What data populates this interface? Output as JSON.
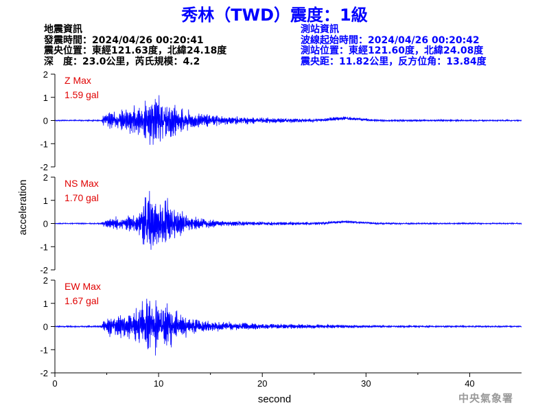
{
  "title": "秀林（TWD）震度：1級",
  "event_info": {
    "heading": "地震資訊",
    "origin_time": "發震時間：2024/04/26 00:20:41",
    "epicenter": "震央位置：東經121.63度，北緯24.18度",
    "depth_magnitude": "深　度：23.0公里，芮氏規模：4.2"
  },
  "station_info": {
    "heading": "測站資訊",
    "waveform_start": "波線起始時間：2024/04/26 00:20:42",
    "station_location": "測站位置：東經121.60度，北緯24.08度",
    "distance_azimuth": "震央距：11.82公里，反方位角：13.84度"
  },
  "agency": "中央氣象署",
  "colors": {
    "title": "#0000ff",
    "trace": "#0000ff",
    "max_label": "#e00000",
    "axis": "#000000",
    "agency": "#9a9a9a"
  },
  "chart_data": {
    "type": "line",
    "xlabel": "second",
    "ylabel": "acceleration",
    "xlim": [
      0,
      45
    ],
    "xticks": [
      0,
      10,
      20,
      30,
      40
    ],
    "ylim": [
      -2,
      2
    ],
    "yticks": [
      -2,
      -1,
      0,
      1,
      2
    ],
    "panels": [
      {
        "component": "Z",
        "label": "Z Max",
        "max_value": "1.59 gal",
        "peak": 1.59,
        "envelope": [
          [
            0,
            0.03
          ],
          [
            4.5,
            0.04
          ],
          [
            4.7,
            0.3
          ],
          [
            5.2,
            0.5
          ],
          [
            6.5,
            0.55
          ],
          [
            7.5,
            0.75
          ],
          [
            8.5,
            1.0
          ],
          [
            9.5,
            1.55
          ],
          [
            10.5,
            1.1
          ],
          [
            11.5,
            0.85
          ],
          [
            12.5,
            0.6
          ],
          [
            14,
            0.4
          ],
          [
            16,
            0.25
          ],
          [
            20,
            0.15
          ],
          [
            25,
            0.1
          ],
          [
            28,
            0.09
          ],
          [
            32,
            0.06
          ],
          [
            45,
            0.04
          ]
        ],
        "drift": [
          [
            0,
            0
          ],
          [
            25,
            0
          ],
          [
            28,
            0.1
          ],
          [
            31,
            0
          ],
          [
            45,
            0
          ]
        ]
      },
      {
        "component": "NS",
        "label": "NS Max",
        "max_value": "1.70 gal",
        "peak": 1.7,
        "envelope": [
          [
            0,
            0.03
          ],
          [
            4.5,
            0.04
          ],
          [
            4.7,
            0.15
          ],
          [
            5.5,
            0.3
          ],
          [
            7,
            0.4
          ],
          [
            8,
            0.5
          ],
          [
            8.6,
            1.3
          ],
          [
            9.2,
            1.7
          ],
          [
            10,
            1.2
          ],
          [
            10.6,
            1.45
          ],
          [
            11.5,
            0.9
          ],
          [
            12.5,
            0.55
          ],
          [
            14,
            0.3
          ],
          [
            16,
            0.15
          ],
          [
            20,
            0.1
          ],
          [
            28,
            0.07
          ],
          [
            32,
            0.05
          ],
          [
            45,
            0.03
          ]
        ],
        "drift": [
          [
            0,
            0
          ],
          [
            25,
            0
          ],
          [
            28,
            0.08
          ],
          [
            31,
            0
          ],
          [
            45,
            0
          ]
        ]
      },
      {
        "component": "EW",
        "label": "EW Max",
        "max_value": "1.67 gal",
        "peak": 1.67,
        "envelope": [
          [
            0,
            0.04
          ],
          [
            4.5,
            0.05
          ],
          [
            4.7,
            0.35
          ],
          [
            5.5,
            0.6
          ],
          [
            7,
            0.7
          ],
          [
            8,
            0.9
          ],
          [
            8.8,
            1.5
          ],
          [
            9.3,
            1.65
          ],
          [
            10,
            1.3
          ],
          [
            10.5,
            1.4
          ],
          [
            11.5,
            0.8
          ],
          [
            12.5,
            0.55
          ],
          [
            14,
            0.35
          ],
          [
            16,
            0.25
          ],
          [
            20,
            0.15
          ],
          [
            28,
            0.09
          ],
          [
            32,
            0.06
          ],
          [
            45,
            0.04
          ]
        ],
        "drift": [
          [
            0,
            0
          ],
          [
            45,
            0
          ]
        ]
      }
    ]
  }
}
